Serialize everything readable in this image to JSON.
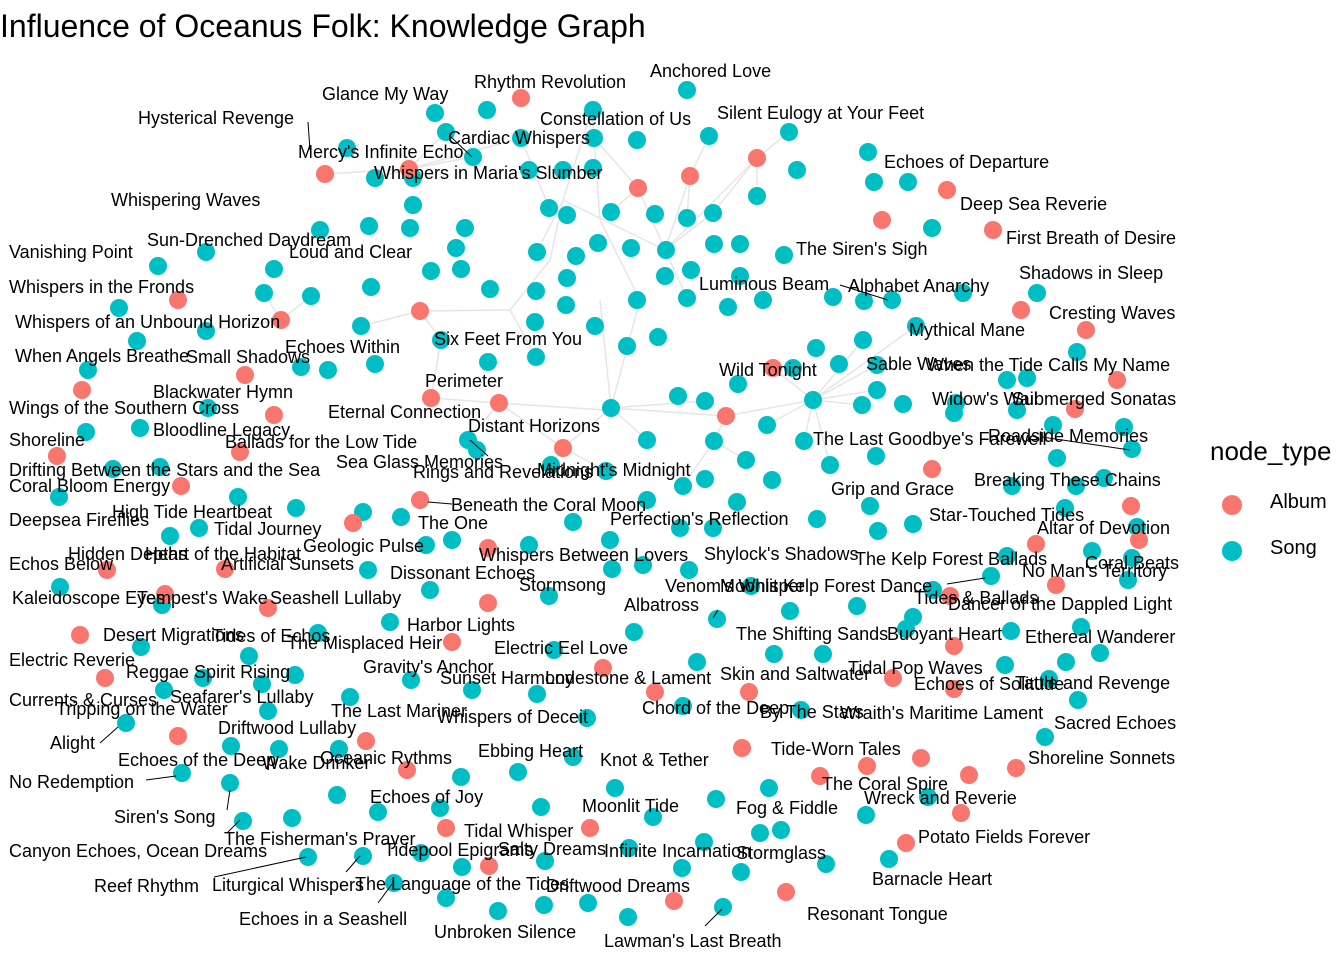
{
  "title": "Influence of Oceanus Folk: Knowledge Graph",
  "legend": {
    "title": "node_type",
    "items": [
      {
        "label": "Album",
        "color": "#F8766D"
      },
      {
        "label": "Song",
        "color": "#00BFC4"
      }
    ]
  },
  "colors": {
    "album": "#F8766D",
    "song": "#00BFC4",
    "edge": "#e6e6e6"
  },
  "labels": [
    "Glance My Way",
    "Rhythm Revolution",
    "Anchored Love",
    "Hysterical Revenge",
    "Constellation of Us",
    "Silent Eulogy at Your Feet",
    "Cardiac Whispers",
    "Mercy's Infinite Echo",
    "Whispers in Maria's Slumber",
    "Echoes of Departure",
    "Whispering Waves",
    "Deep Sea Reverie",
    "Sun-Drenched Daydream",
    "First Breath of Desire",
    "Vanishing Point",
    "Loud and Clear",
    "The Siren's Sigh",
    "Shadows in Sleep",
    "Whispers in the Fronds",
    "Luminous Beam",
    "Alphabet Anarchy",
    "Cresting Waves",
    "Whispers of an Unbound Horizon",
    "Mythical Mane",
    "Six Feet From You",
    "Echoes Within",
    "When Angels Breathe",
    "Small Shadows",
    "Sable Waves",
    "When the Tide Calls My Name",
    "Wild Tonight",
    "Perimeter",
    "Blackwater Hymn",
    "Widow's Wail",
    "Submerged Sonatas",
    "Wings of the Southern Cross",
    "Eternal Connection",
    "Distant Horizons",
    "Bloodline Legacy",
    "The Last Goodbye's Farewell",
    "Roadside Memories",
    "Shoreline",
    "Ballads for the Low Tide",
    "Sea Glass Memories",
    "Rings and Revelations",
    "Midnight's Midnight",
    "Drifting Between the Stars and the Sea",
    "Breaking These Chains",
    "Coral Bloom Energy",
    "Grip and Grace",
    "High Tide Heartbeat",
    "Beneath the Coral Moon",
    "Deepsea Fireflies",
    "Perfection's Reflection",
    "Star-Touched Tides",
    "Tidal Journey",
    "The One",
    "Altar of Devotion",
    "Geologic Pulse",
    "Hidden Depths",
    "Heart of the Habitat",
    "Whispers Between Lovers",
    "Shylock's Shadows",
    "The Kelp Forest Ballads",
    "Coral Beats",
    "Artificial Sunsets",
    "Dissonant Echoes",
    "No Man's Territory",
    "Echos Below",
    "Stormsong",
    "Venom's Whisper",
    "Moonlit Kelp Forest Dance",
    "Tides & Ballads",
    "Kaleidoscope Eyes",
    "Tempest's Wake",
    "Seashell Lullaby",
    "Albatross",
    "Dancer of the Dappled Light",
    "Harbor Lights",
    "Desert Migrations",
    "Tides of Echos",
    "The Shifting Sands",
    "Buoyant Heart",
    "Ethereal Wanderer",
    "The Misplaced Heir",
    "Electric Eel Love",
    "Electric Reverie",
    "Reggae Spirit Rising",
    "Gravity's Anchor",
    "Tidal Pop Waves",
    "Sunset Harmony",
    "Lodestone & Lament",
    "Skin and Saltwater",
    "Echoes of Solitude",
    "Tattle and Revenge",
    "Currents & Curses",
    "Seafarer's Lullaby",
    "Tripping on the Water",
    "Driftwood Lullaby",
    "The Last Mariner",
    "Chord of the Deep",
    "By The Stars",
    "Wraith's Maritime Lament",
    "Whispers of Deceit",
    "Sacred Echoes",
    "Alight",
    "Echoes of the Deep",
    "Oceanic Rythms",
    "Ebbing Heart",
    "Tide-Worn Tales",
    "Wake Drinker",
    "Knot & Tether",
    "Shoreline Sonnets",
    "No Redemption",
    "The Coral Spire",
    "Echoes of Joy",
    "Wreck and Reverie",
    "Moonlit Tide",
    "Fog & Fiddle",
    "Siren's Song",
    "Tidal Whisper",
    "Potato Fields Forever",
    "The Fisherman's Prayer",
    "Canyon Echoes, Ocean Dreams",
    "Tidepool Epigrams",
    "Salty Dreams",
    "Infinite Incarnation",
    "Stormglass",
    "Reef Rhythm",
    "Liturgical Whispers",
    "The Language of the Tides",
    "Driftwood Dreams",
    "Barnacle Heart",
    "Echoes in a Seashell",
    "Resonant Tongue",
    "Unbroken Silence",
    "Lawman's Last Breath"
  ]
}
